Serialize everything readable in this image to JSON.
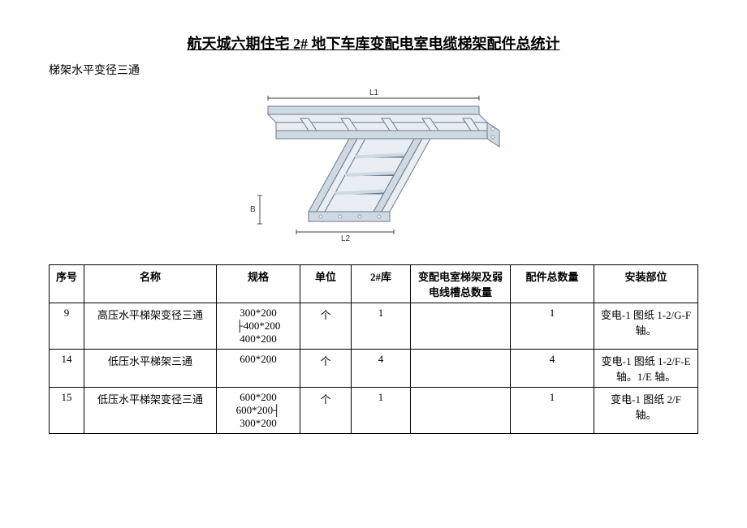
{
  "title": "航天城六期住宅 2#  地下车库变配电室电缆梯架配件总统计",
  "subtitle": "梯架水平变径三通",
  "diagram": {
    "labels": {
      "L1": "L1",
      "L2": "L2",
      "B": "B"
    },
    "stroke": "#6b7a8a",
    "fill_light": "#e8eef4",
    "fill_mid": "#cfd9e2"
  },
  "table": {
    "columns": [
      "序号",
      "名称",
      "规格",
      "单位",
      "2#库",
      "变配电室梯架及弱电线槽总数量",
      "配件总数量",
      "安装部位"
    ],
    "rows": [
      {
        "seq": "9",
        "name": "高压水平梯架变径三通",
        "spec": "300*200\n├400*200\n400*200",
        "unit": "个",
        "warehouse": "1",
        "total1": "",
        "total2": "1",
        "location": "变电-1 图纸 1-2/G-F 轴。"
      },
      {
        "seq": "14",
        "name": "低压水平梯架三通",
        "spec": "600*200",
        "unit": "个",
        "warehouse": "4",
        "total1": "",
        "total2": "4",
        "location": "变电-1 图纸 1-2/F-E 轴。1/E 轴。"
      },
      {
        "seq": "15",
        "name": "低压水平梯架变径三通",
        "spec": "600*200\n600*200┤\n300*200",
        "unit": "个",
        "warehouse": "1",
        "total1": "",
        "total2": "1",
        "location": "变电-1 图纸 2/F 轴。"
      }
    ]
  }
}
